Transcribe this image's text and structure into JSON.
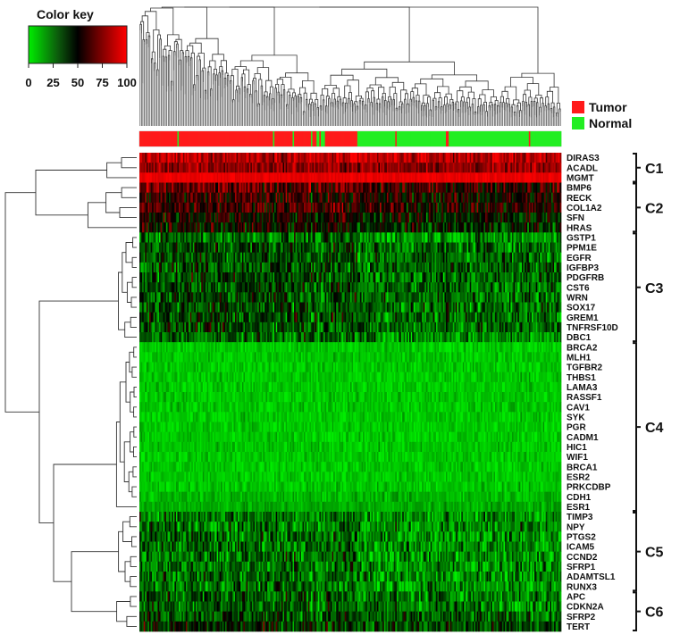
{
  "chart_data": {
    "type": "heatmap",
    "color_key": {
      "title": "Color key",
      "ticks": [
        "0",
        "25",
        "50",
        "75",
        "100"
      ],
      "range": [
        0,
        100
      ],
      "colors": [
        "#00ee00",
        "#000000",
        "#ff0000"
      ]
    },
    "legend": [
      {
        "label": "Tumor",
        "color": "#ff1a1a"
      },
      {
        "label": "Normal",
        "color": "#22ee22"
      }
    ],
    "sample_groups": {
      "total": 300,
      "tumor_count": 155,
      "normal_count": 145,
      "normal_within_tumor": [
        27,
        95,
        109,
        122,
        126,
        127,
        129,
        130,
        131
      ],
      "tumor_within_normal": [
        182,
        218,
        219,
        277
      ]
    },
    "clusters": [
      {
        "name": "C1",
        "genes": [
          "DIRAS3",
          "ACADL",
          "MGMT"
        ],
        "mean_methylation": 78
      },
      {
        "name": "C2",
        "genes": [
          "BMP6",
          "RECK",
          "COL1A2",
          "SFN",
          "HRAS"
        ],
        "mean_methylation": 52
      },
      {
        "name": "C3",
        "genes": [
          "GSTP1",
          "PPM1E",
          "EGFR",
          "IGFBP3",
          "PDGFRB",
          "CST6",
          "WRN",
          "SOX17",
          "GREM1",
          "TNFRSF10D",
          "DBC1"
        ],
        "mean_methylation": 28
      },
      {
        "name": "C4",
        "genes": [
          "BRCA2",
          "MLH1",
          "TGFBR2",
          "THBS1",
          "LAMA3",
          "RASSF1",
          "CAV1",
          "SYK",
          "PGR",
          "CADM1",
          "HIC1",
          "WIF1",
          "BRCA1",
          "ESR2",
          "PRKCDBP",
          "CDH1",
          "ESR1"
        ],
        "mean_methylation": 8
      },
      {
        "name": "C5",
        "genes": [
          "TIMP3",
          "NPY",
          "PTGS2",
          "ICAM5",
          "CCND2",
          "SFRP1",
          "ADAMTSL1",
          "RUNX3"
        ],
        "mean_methylation": 20
      },
      {
        "name": "C6",
        "genes": [
          "APC",
          "CDKN2A",
          "SFRP2",
          "TERT"
        ],
        "mean_methylation": 25
      }
    ]
  }
}
